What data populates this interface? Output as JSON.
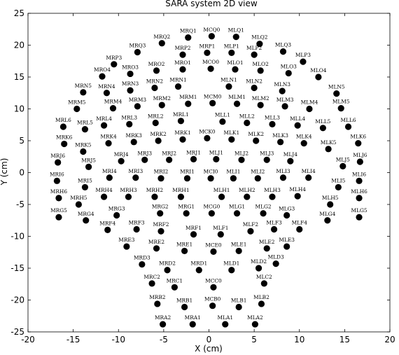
{
  "chart_data": {
    "type": "scatter",
    "title": "SARA system 2D view",
    "xlabel": "X (cm)",
    "ylabel": "Y (cm)",
    "xlim": [
      -20,
      20
    ],
    "ylim": [
      -25,
      25
    ],
    "xticks": [
      -20,
      -15,
      -10,
      -5,
      0,
      5,
      10,
      15,
      20
    ],
    "yticks": [
      -25,
      -20,
      -15,
      -10,
      -5,
      0,
      5,
      10,
      15,
      20,
      25
    ],
    "grid": false,
    "marker_color": "#000000",
    "points": [
      {
        "label": "MRQ2",
        "x": -5.2,
        "y": 20.3
      },
      {
        "label": "MRQ1",
        "x": -2.3,
        "y": 21.2
      },
      {
        "label": "MCQ0",
        "x": 0.3,
        "y": 21.4
      },
      {
        "label": "MLQ1",
        "x": 3.0,
        "y": 21.3
      },
      {
        "label": "MLQ2",
        "x": 5.6,
        "y": 20.2
      },
      {
        "label": "MLQ3",
        "x": 8.2,
        "y": 19.0
      },
      {
        "label": "MRQ3",
        "x": -7.9,
        "y": 18.9
      },
      {
        "label": "MRP1",
        "x": -0.2,
        "y": 18.8
      },
      {
        "label": "MLP1",
        "x": 2.5,
        "y": 18.8
      },
      {
        "label": "MRP2",
        "x": -2.9,
        "y": 18.5
      },
      {
        "label": "MLP2",
        "x": 5.0,
        "y": 18.5
      },
      {
        "label": "MRP3",
        "x": -10.5,
        "y": 17.0
      },
      {
        "label": "MLP3",
        "x": 10.4,
        "y": 17.4
      },
      {
        "label": "MCO0",
        "x": 0.2,
        "y": 16.3
      },
      {
        "label": "MRO2",
        "x": -5.8,
        "y": 16.0
      },
      {
        "label": "MRO1",
        "x": -2.9,
        "y": 16.2
      },
      {
        "label": "MLO1",
        "x": 2.9,
        "y": 16.2
      },
      {
        "label": "MLO2",
        "x": 5.7,
        "y": 16.0
      },
      {
        "label": "MLO3",
        "x": 8.8,
        "y": 15.6
      },
      {
        "label": "MRO4",
        "x": -11.8,
        "y": 15.1
      },
      {
        "label": "MRO3",
        "x": -8.7,
        "y": 15.5
      },
      {
        "label": "MLO4",
        "x": 12.1,
        "y": 15.0
      },
      {
        "label": "MRN1",
        "x": -3.4,
        "y": 13.5
      },
      {
        "label": "MLN1",
        "x": 2.2,
        "y": 13.5
      },
      {
        "label": "MRN2",
        "x": -6.0,
        "y": 13.3
      },
      {
        "label": "MLN2",
        "x": 5.0,
        "y": 13.3
      },
      {
        "label": "MRN3",
        "x": -8.7,
        "y": 12.9
      },
      {
        "label": "MLN3",
        "x": 8.1,
        "y": 12.8
      },
      {
        "label": "MRN4",
        "x": -11.3,
        "y": 12.5
      },
      {
        "label": "MRN5",
        "x": -13.9,
        "y": 12.6
      },
      {
        "label": "MLN5",
        "x": 14.1,
        "y": 12.4
      },
      {
        "label": "MCM0",
        "x": 0.4,
        "y": 10.9
      },
      {
        "label": "MRM1",
        "x": -2.3,
        "y": 10.8
      },
      {
        "label": "MLM1",
        "x": 3.1,
        "y": 10.8
      },
      {
        "label": "MRM2",
        "x": -5.2,
        "y": 10.6
      },
      {
        "label": "MLM2",
        "x": 5.7,
        "y": 10.6
      },
      {
        "label": "MRM3",
        "x": -7.9,
        "y": 10.4
      },
      {
        "label": "MLM3",
        "x": 8.4,
        "y": 10.4
      },
      {
        "label": "MRM4",
        "x": -10.6,
        "y": 10.1
      },
      {
        "label": "MLM4",
        "x": 11.1,
        "y": 10.0
      },
      {
        "label": "MRM5",
        "x": -14.6,
        "y": 10.0
      },
      {
        "label": "MLM5",
        "x": 14.6,
        "y": 10.1
      },
      {
        "label": "MRL1",
        "x": -3.1,
        "y": 8.1
      },
      {
        "label": "MLL1",
        "x": 1.5,
        "y": 8.0
      },
      {
        "label": "MRL2",
        "x": -5.9,
        "y": 7.8
      },
      {
        "label": "MLL2",
        "x": 4.2,
        "y": 7.8
      },
      {
        "label": "MRL3",
        "x": -8.8,
        "y": 7.6
      },
      {
        "label": "MLL3",
        "x": 7.0,
        "y": 7.6
      },
      {
        "label": "MRL4",
        "x": -11.6,
        "y": 7.4
      },
      {
        "label": "MLL4",
        "x": 9.8,
        "y": 7.4
      },
      {
        "label": "MRL5",
        "x": -13.7,
        "y": 6.8
      },
      {
        "label": "MLL5",
        "x": 12.6,
        "y": 7.0
      },
      {
        "label": "MRL6",
        "x": -16.1,
        "y": 7.2
      },
      {
        "label": "MLL6",
        "x": 15.4,
        "y": 7.2
      },
      {
        "label": "MCK0",
        "x": -0.2,
        "y": 5.4
      },
      {
        "label": "MRK1",
        "x": -2.9,
        "y": 5.2
      },
      {
        "label": "MLK1",
        "x": 2.5,
        "y": 5.2
      },
      {
        "label": "MRK2",
        "x": -5.6,
        "y": 5.0
      },
      {
        "label": "MLK2",
        "x": 5.2,
        "y": 5.0
      },
      {
        "label": "MRK3",
        "x": -8.3,
        "y": 4.8
      },
      {
        "label": "MLK3",
        "x": 7.9,
        "y": 4.8
      },
      {
        "label": "MRK4",
        "x": -11.1,
        "y": 4.6
      },
      {
        "label": "MLK4",
        "x": 10.5,
        "y": 4.6
      },
      {
        "label": "MRK5",
        "x": -13.9,
        "y": 3.3
      },
      {
        "label": "MLK5",
        "x": 13.2,
        "y": 3.7
      },
      {
        "label": "MRK6",
        "x": -16.0,
        "y": 4.5
      },
      {
        "label": "MLK6",
        "x": 16.5,
        "y": 4.6
      },
      {
        "label": "MRJ1",
        "x": -1.7,
        "y": 2.1
      },
      {
        "label": "MLJ1",
        "x": 0.8,
        "y": 2.1
      },
      {
        "label": "MRJ2",
        "x": -4.4,
        "y": 2.0
      },
      {
        "label": "MLJ2",
        "x": 3.6,
        "y": 2.0
      },
      {
        "label": "MRJ3",
        "x": -7.1,
        "y": 2.0
      },
      {
        "label": "MLJ3",
        "x": 6.4,
        "y": 2.0
      },
      {
        "label": "MRJ4",
        "x": -9.7,
        "y": 1.8
      },
      {
        "label": "MLJ4",
        "x": 9.0,
        "y": 1.8
      },
      {
        "label": "MRJ5",
        "x": -13.3,
        "y": 0.9
      },
      {
        "label": "MLJ5",
        "x": 14.8,
        "y": 1.0
      },
      {
        "label": "MRJ6",
        "x": -16.7,
        "y": 1.6
      },
      {
        "label": "MLJ6",
        "x": 16.7,
        "y": 1.7
      },
      {
        "label": "MCI0",
        "x": 0.2,
        "y": -0.9
      },
      {
        "label": "MRI1",
        "x": -2.4,
        "y": -0.9
      },
      {
        "label": "MLI1",
        "x": 2.7,
        "y": -0.9
      },
      {
        "label": "MRI2",
        "x": -5.3,
        "y": -0.9
      },
      {
        "label": "MLI2",
        "x": 5.4,
        "y": -0.9
      },
      {
        "label": "MRI3",
        "x": -8.1,
        "y": -0.8
      },
      {
        "label": "MLI3",
        "x": 8.2,
        "y": -0.8
      },
      {
        "label": "MRI4",
        "x": -11.0,
        "y": -0.8
      },
      {
        "label": "MLI4",
        "x": 11.0,
        "y": -0.8
      },
      {
        "label": "MRI5",
        "x": -13.7,
        "y": -2.3
      },
      {
        "label": "MLI5",
        "x": 14.3,
        "y": -2.3
      },
      {
        "label": "MRI6",
        "x": -16.8,
        "y": -1.3
      },
      {
        "label": "MLI6",
        "x": 16.6,
        "y": -1.3
      },
      {
        "label": "MRH1",
        "x": -3.1,
        "y": -3.8
      },
      {
        "label": "MLH1",
        "x": 1.4,
        "y": -3.8
      },
      {
        "label": "MRH2",
        "x": -6.0,
        "y": -3.8
      },
      {
        "label": "MLH2",
        "x": 4.2,
        "y": -3.8
      },
      {
        "label": "MRH3",
        "x": -8.9,
        "y": -3.8
      },
      {
        "label": "MLH3",
        "x": 7.0,
        "y": -3.8
      },
      {
        "label": "MRH4",
        "x": -11.6,
        "y": -3.8
      },
      {
        "label": "MLH4",
        "x": 9.8,
        "y": -3.7
      },
      {
        "label": "MRH5",
        "x": -14.4,
        "y": -5.0
      },
      {
        "label": "MLH5",
        "x": 13.4,
        "y": -5.0
      },
      {
        "label": "MRH6",
        "x": -16.6,
        "y": -4.0
      },
      {
        "label": "MLH6",
        "x": 16.6,
        "y": -4.0
      },
      {
        "label": "MCG0",
        "x": 0.3,
        "y": -6.4
      },
      {
        "label": "MRG1",
        "x": -2.5,
        "y": -6.4
      },
      {
        "label": "MLG1",
        "x": 3.1,
        "y": -6.4
      },
      {
        "label": "MRG2",
        "x": -5.4,
        "y": -6.4
      },
      {
        "label": "MLG2",
        "x": 6.0,
        "y": -6.4
      },
      {
        "label": "MRG3",
        "x": -10.2,
        "y": -6.7
      },
      {
        "label": "MLG3",
        "x": 8.6,
        "y": -6.7
      },
      {
        "label": "MRG4",
        "x": -13.6,
        "y": -7.5
      },
      {
        "label": "MLG4",
        "x": 13.1,
        "y": -7.5
      },
      {
        "label": "MRG5",
        "x": -16.6,
        "y": -7.0
      },
      {
        "label": "MLG5",
        "x": 16.6,
        "y": -7.0
      },
      {
        "label": "MRF1",
        "x": -1.7,
        "y": -9.7
      },
      {
        "label": "MLF1",
        "x": 1.3,
        "y": -9.7
      },
      {
        "label": "MRF2",
        "x": -5.3,
        "y": -9.2
      },
      {
        "label": "MLF2",
        "x": 4.6,
        "y": -9.2
      },
      {
        "label": "MRF3",
        "x": -8.0,
        "y": -8.9
      },
      {
        "label": "MLF3",
        "x": 7.2,
        "y": -8.9
      },
      {
        "label": "MRF4",
        "x": -11.2,
        "y": -9.0
      },
      {
        "label": "MLF4",
        "x": 10.0,
        "y": -8.9
      },
      {
        "label": "MCE0",
        "x": 0.5,
        "y": -12.4
      },
      {
        "label": "MRE1",
        "x": -2.7,
        "y": -12.3
      },
      {
        "label": "MLE1",
        "x": 3.3,
        "y": -12.3
      },
      {
        "label": "MRE2",
        "x": -5.8,
        "y": -11.9
      },
      {
        "label": "MLE2",
        "x": 6.4,
        "y": -11.9
      },
      {
        "label": "MRE3",
        "x": -9.1,
        "y": -11.6
      },
      {
        "label": "MLE3",
        "x": 8.6,
        "y": -11.6
      },
      {
        "label": "MRD1",
        "x": -1.1,
        "y": -15.3
      },
      {
        "label": "MLD1",
        "x": 2.5,
        "y": -15.3
      },
      {
        "label": "MRD2",
        "x": -4.6,
        "y": -15.3
      },
      {
        "label": "MLD2",
        "x": 5.5,
        "y": -15.0
      },
      {
        "label": "MRD3",
        "x": -7.4,
        "y": -14.4
      },
      {
        "label": "MLD3",
        "x": 7.4,
        "y": -14.3
      },
      {
        "label": "MCC0",
        "x": 0.5,
        "y": -18.0
      },
      {
        "label": "MRC1",
        "x": -3.8,
        "y": -18.0
      },
      {
        "label": "MRC2",
        "x": -6.3,
        "y": -17.4
      },
      {
        "label": "MLC2",
        "x": 6.1,
        "y": -17.4
      },
      {
        "label": "MCB0",
        "x": 0.4,
        "y": -20.9
      },
      {
        "label": "MRB1",
        "x": -2.7,
        "y": -21.1
      },
      {
        "label": "MLB1",
        "x": 3.3,
        "y": -21.1
      },
      {
        "label": "MRB2",
        "x": -5.7,
        "y": -20.6
      },
      {
        "label": "MLB2",
        "x": 5.8,
        "y": -20.6
      },
      {
        "label": "MRA1",
        "x": -1.8,
        "y": -23.8
      },
      {
        "label": "MLA1",
        "x": 1.8,
        "y": -23.8
      },
      {
        "label": "MRA2",
        "x": -5.1,
        "y": -23.8
      },
      {
        "label": "MLA2",
        "x": 5.1,
        "y": -23.8
      }
    ]
  }
}
